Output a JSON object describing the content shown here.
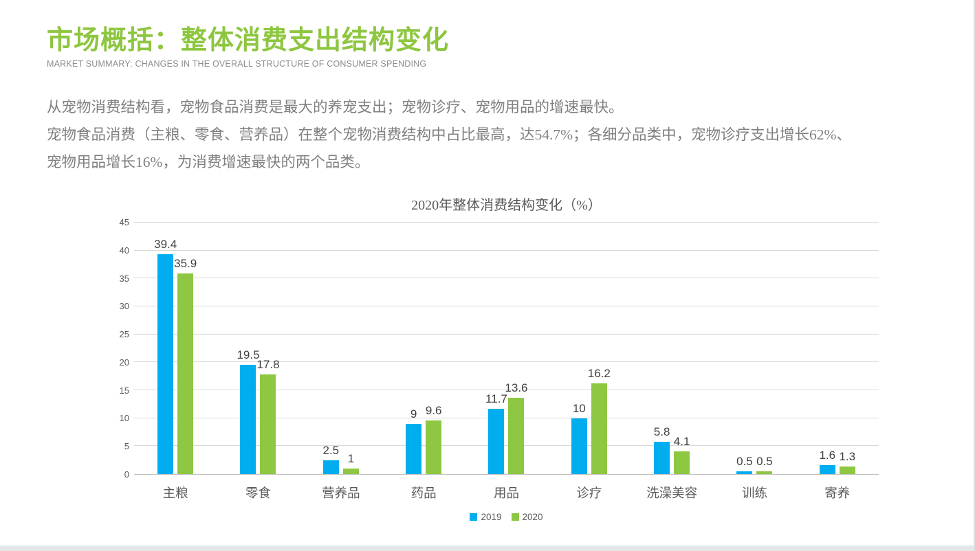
{
  "header": {
    "title": "市场概括：整体消费支出结构变化",
    "subtitle": "MARKET SUMMARY: CHANGES IN THE OVERALL STRUCTURE OF CONSUMER SPENDING"
  },
  "summary": {
    "lines": [
      "从宠物消费结构看，宠物食品消费是最大的养宠支出；宠物诊疗、宠物用品的增速最快。",
      "宠物食品消费（主粮、零食、营养品）在整个宠物消费结构中占比最高，达54.7%；各细分品类中，宠物诊疗支出增长62%、",
      "宠物用品增长16%，为消费增速最快的两个品类。"
    ]
  },
  "colors": {
    "accent_green": "#8dc63f",
    "bar_blue": "#00aeef",
    "bar_green": "#8ec741"
  },
  "chart_data": {
    "type": "bar",
    "title": "2020年整体消费结构变化（%）",
    "categories": [
      "主粮",
      "零食",
      "营养品",
      "药品",
      "用品",
      "诊疗",
      "洗澡美容",
      "训练",
      "寄养"
    ],
    "series": [
      {
        "name": "2019",
        "color": "#00aeef",
        "values": [
          39.4,
          19.5,
          2.5,
          9,
          11.7,
          10,
          5.8,
          0.5,
          1.6
        ]
      },
      {
        "name": "2020",
        "color": "#8ec741",
        "values": [
          35.9,
          17.8,
          1,
          9.6,
          13.6,
          16.2,
          4.1,
          0.5,
          1.3
        ]
      }
    ],
    "xlabel": "",
    "ylabel": "",
    "ylim": [
      0,
      45
    ],
    "ytick_step": 5,
    "grid": true,
    "legend_position": "bottom"
  }
}
